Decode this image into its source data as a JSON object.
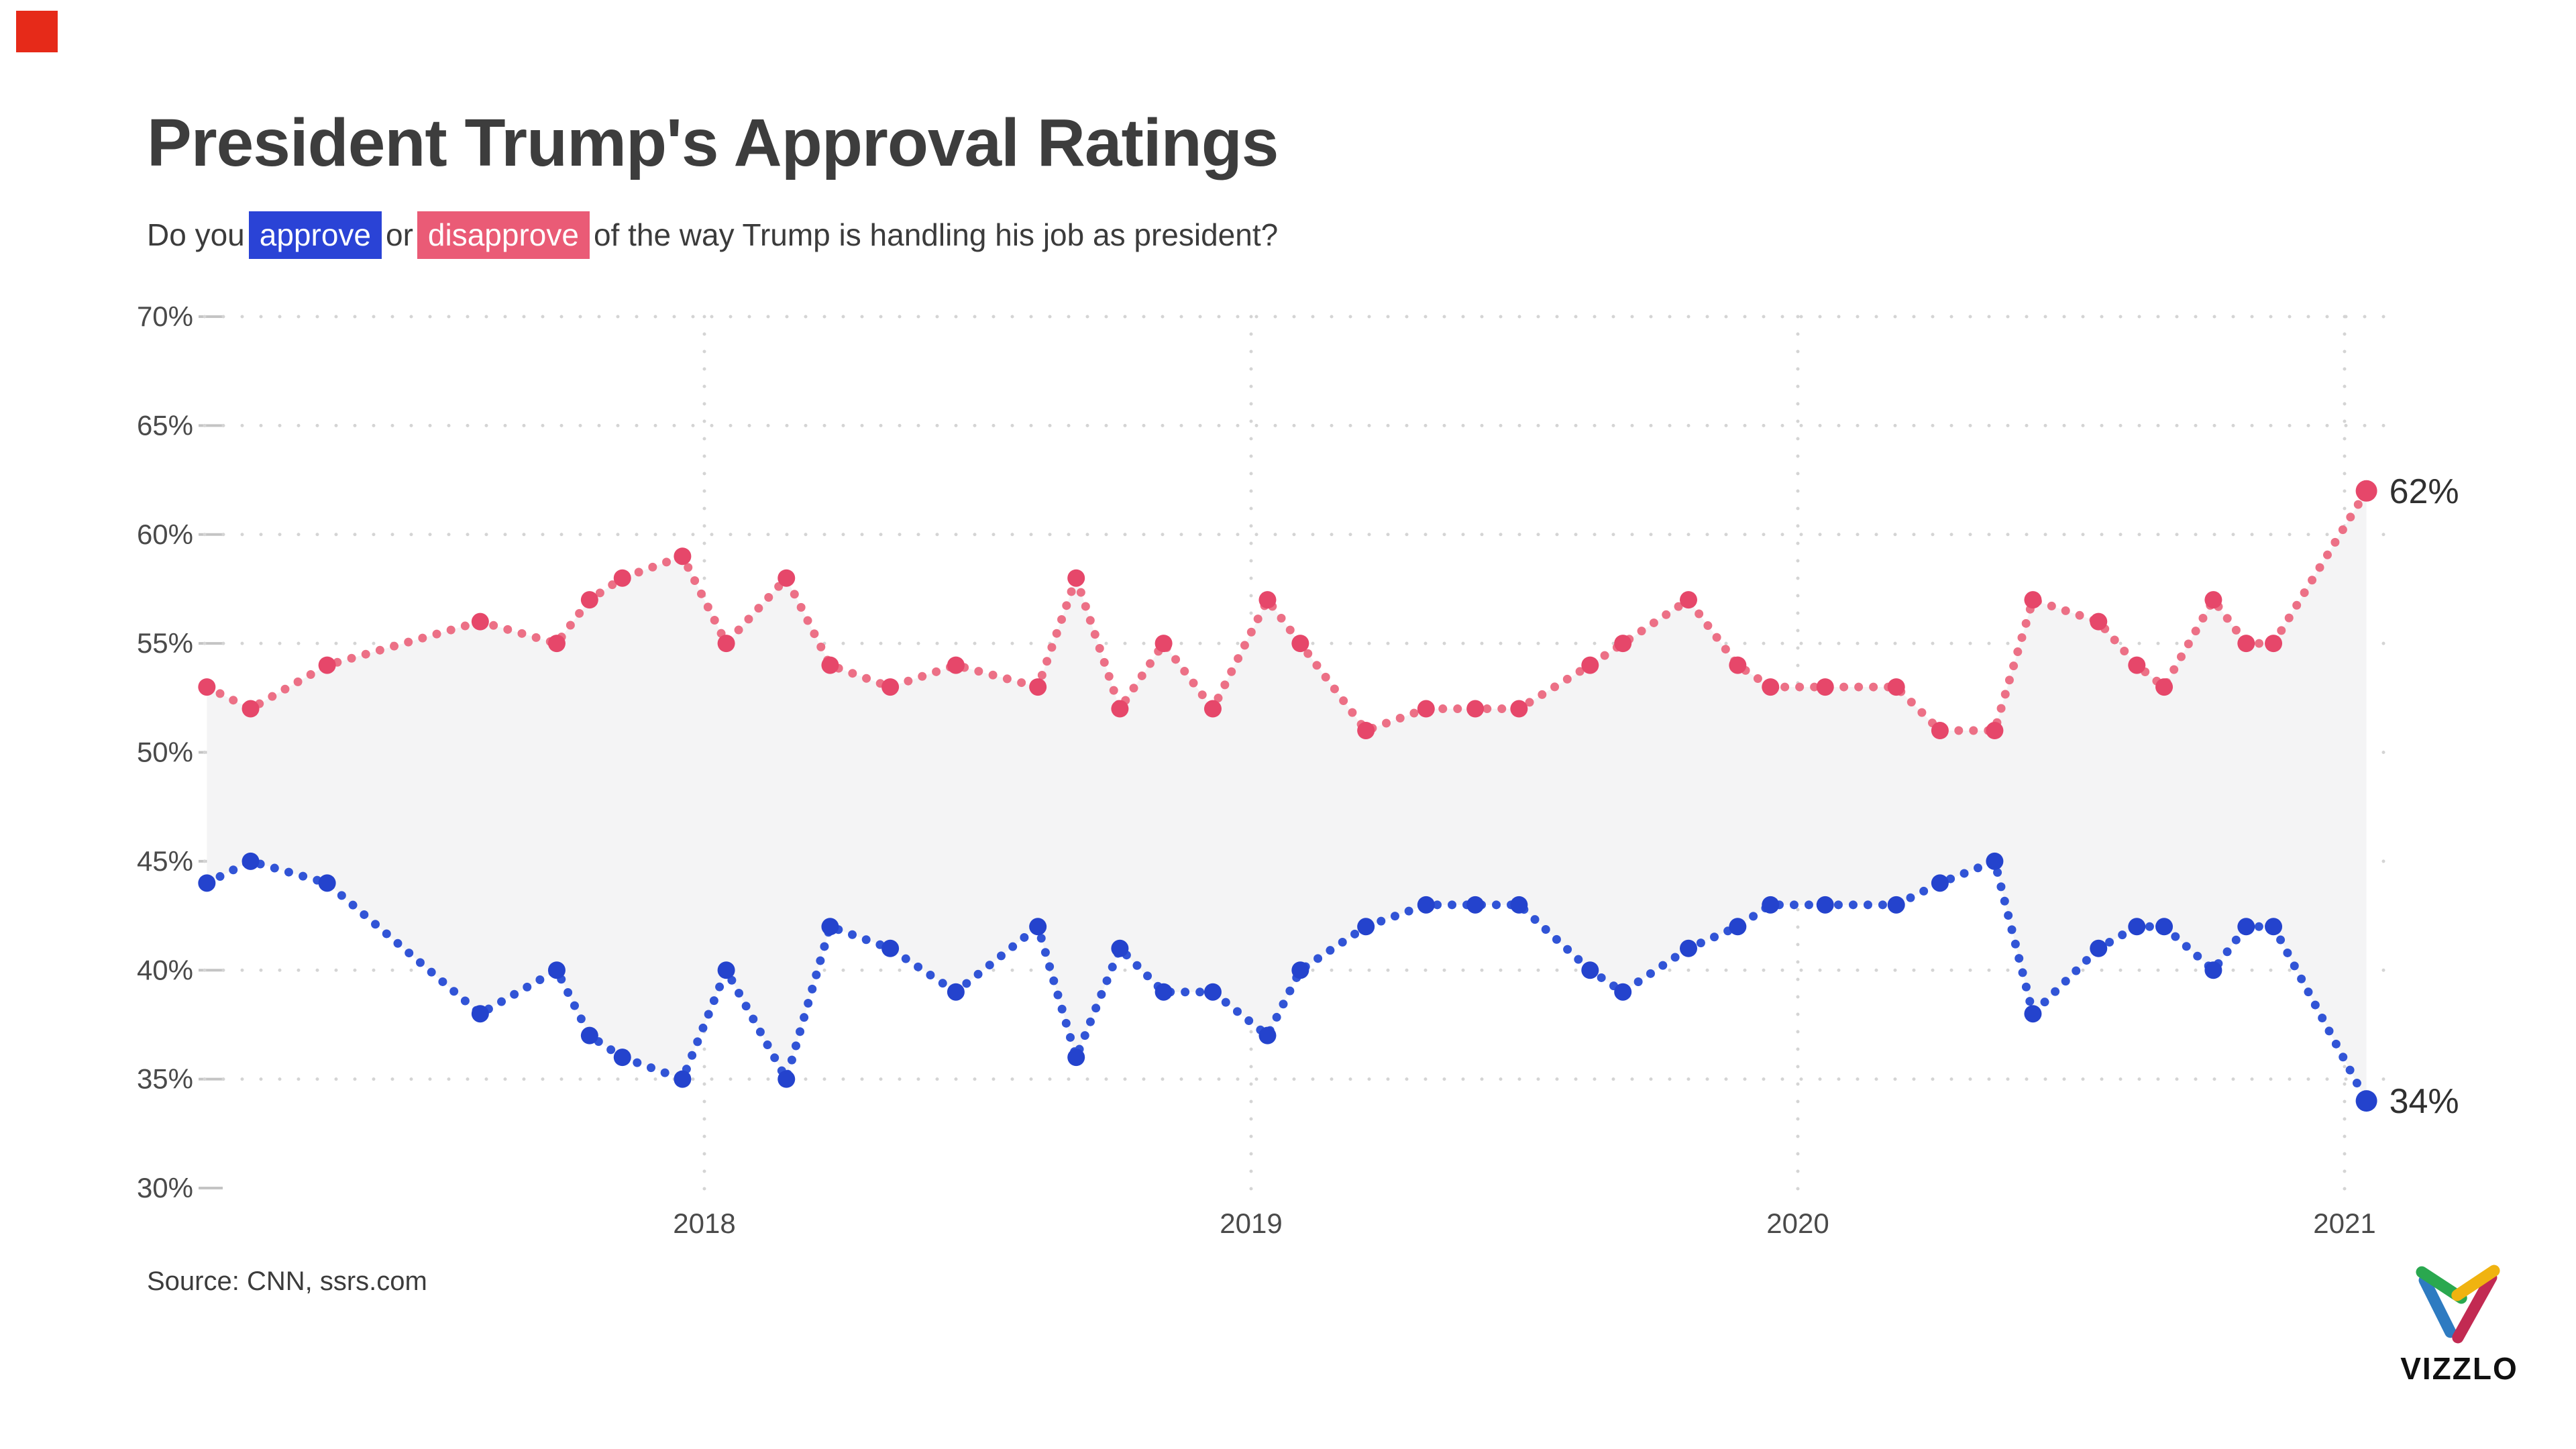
{
  "header": {
    "title": "President Trump's Approval Ratings",
    "subtitle_prefix": "Do you",
    "chip_approve": "approve",
    "subtitle_middle": "or",
    "chip_disapprove": "disapprove",
    "subtitle_suffix": "of the way Trump is handling his job as president?"
  },
  "footer": {
    "source": "Source: CNN, ssrs.com",
    "logo_text": "VIZZLO"
  },
  "colors": {
    "brand_square": "#e62a19",
    "approve_line": "#3154d6",
    "approve_dot": "#2443cd",
    "disapprove_line": "#ec7086",
    "disapprove_dot": "#e6476a",
    "area_fill": "#f4f4f5",
    "gridline": "#d4d4d4",
    "tick_dash": "#c4c4c4",
    "axis_label": "#4a4a4a",
    "end_label": "#303030",
    "chip_approve_bg": "#2a43d6",
    "chip_disapprove_bg": "#ea5b76",
    "logo_green": "#2aa84f",
    "logo_yellow": "#f0b310",
    "logo_blue": "#2e7bc1",
    "logo_crimson": "#c22a52"
  },
  "chart_data": {
    "type": "line",
    "title": "President Trump's Approval Ratings",
    "question": "Do you approve or disapprove of the way Trump is handling his job as president?",
    "y_ticks": [
      "70%",
      "65%",
      "60%",
      "55%",
      "50%",
      "45%",
      "40%",
      "35%",
      "30%"
    ],
    "x_ticks": [
      "2018",
      "2019",
      "2020",
      "2021"
    ],
    "ylim": [
      30,
      70
    ],
    "xlim_years": [
      2017.05,
      2021.15
    ],
    "grid": "dotted",
    "legend_position": "none",
    "x": [
      2017.09,
      2017.17,
      2017.31,
      2017.59,
      2017.73,
      2017.79,
      2017.85,
      2017.96,
      2018.04,
      2018.15,
      2018.23,
      2018.34,
      2018.46,
      2018.61,
      2018.68,
      2018.76,
      2018.84,
      2018.93,
      2019.03,
      2019.09,
      2019.21,
      2019.32,
      2019.41,
      2019.49,
      2019.62,
      2019.68,
      2019.8,
      2019.89,
      2019.95,
      2020.05,
      2020.18,
      2020.26,
      2020.36,
      2020.43,
      2020.55,
      2020.62,
      2020.67,
      2020.76,
      2020.82,
      2020.87,
      2021.04
    ],
    "series": [
      {
        "name": "approve",
        "values": [
          44,
          45,
          44,
          38,
          40,
          37,
          36,
          35,
          40,
          35,
          42,
          41,
          39,
          42,
          36,
          41,
          39,
          39,
          37,
          40,
          42,
          43,
          43,
          43,
          40,
          39,
          41,
          42,
          43,
          43,
          43,
          44,
          45,
          38,
          41,
          42,
          42,
          40,
          42,
          42,
          34
        ]
      },
      {
        "name": "disapprove",
        "values": [
          53,
          52,
          54,
          56,
          55,
          57,
          58,
          59,
          55,
          58,
          54,
          53,
          54,
          53,
          58,
          52,
          55,
          52,
          57,
          55,
          51,
          52,
          52,
          52,
          54,
          55,
          57,
          54,
          53,
          53,
          53,
          51,
          51,
          57,
          56,
          54,
          53,
          57,
          55,
          55,
          62
        ]
      }
    ],
    "end_labels": [
      {
        "series": "disapprove",
        "text": "62%"
      },
      {
        "series": "approve",
        "text": "34%"
      }
    ],
    "source": "Source: CNN, ssrs.com"
  }
}
